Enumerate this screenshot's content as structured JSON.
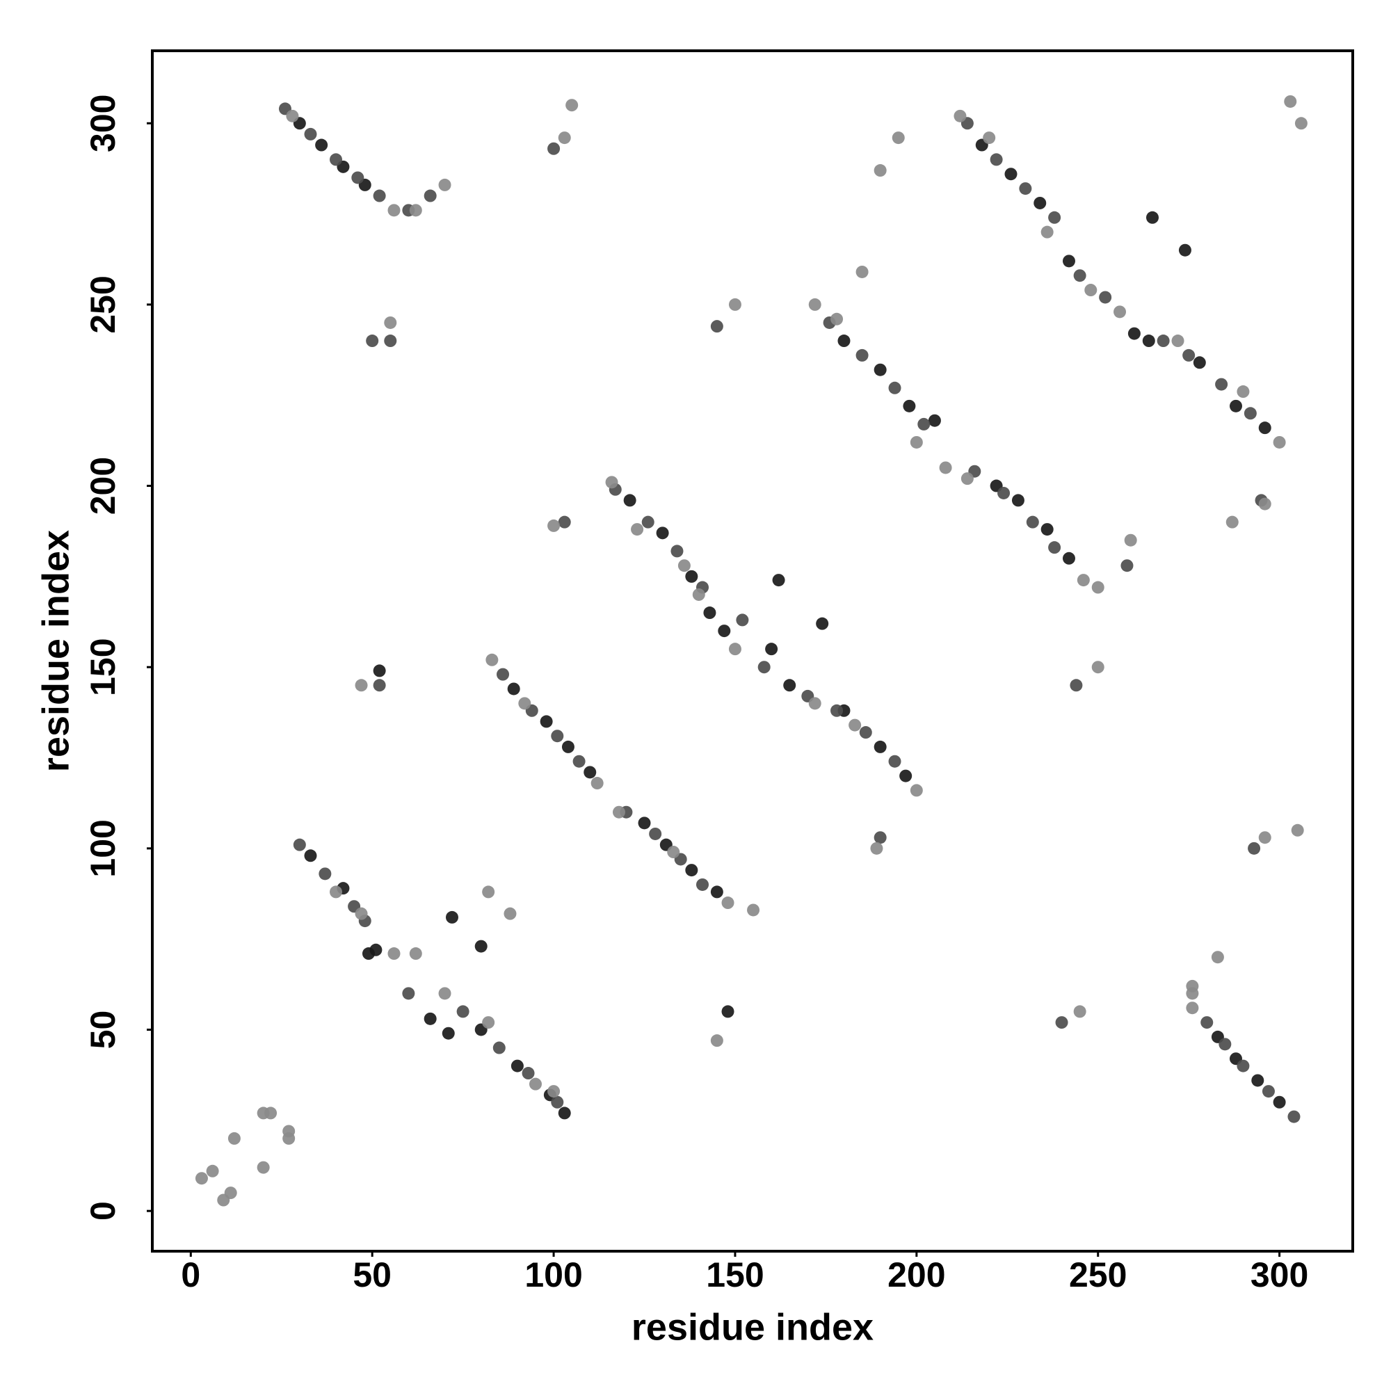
{
  "chart_data": {
    "type": "scatter",
    "xlabel": "residue index",
    "ylabel": "residue index",
    "xlim": [
      -10.6,
      320.2
    ],
    "ylim": [
      -11.1,
      320
    ],
    "xticks": [
      0,
      50,
      100,
      150,
      200,
      250,
      300
    ],
    "yticks": [
      0,
      50,
      100,
      150,
      200,
      250,
      300
    ],
    "series": [
      {
        "color": "#1a1a1a",
        "x": [
          30,
          36,
          42,
          48,
          300,
          294,
          288,
          283,
          33,
          42,
          51,
          66,
          80,
          90,
          99,
          103,
          89,
          98,
          104,
          110,
          125,
          131,
          138,
          145,
          121,
          130,
          138,
          143,
          147,
          160,
          165,
          180,
          190,
          197,
          180,
          190,
          198,
          205,
          222,
          228,
          236,
          242,
          218,
          226,
          234,
          242,
          260,
          264,
          278,
          288,
          296,
          52,
          72,
          80,
          148,
          162,
          174,
          265,
          274,
          71,
          49
        ],
        "y": [
          300,
          294,
          288,
          283,
          30,
          36,
          42,
          48,
          98,
          89,
          72,
          53,
          50,
          40,
          32,
          27,
          144,
          135,
          128,
          121,
          107,
          101,
          94,
          88,
          196,
          187,
          175,
          165,
          160,
          155,
          145,
          138,
          128,
          120,
          240,
          232,
          222,
          218,
          200,
          196,
          188,
          180,
          294,
          286,
          278,
          262,
          242,
          240,
          234,
          222,
          216,
          149,
          81,
          73,
          55,
          174,
          162,
          274,
          265,
          49,
          71
        ]
      },
      {
        "color": "#4d4d4d",
        "x": [
          26,
          33,
          40,
          46,
          52,
          60,
          66,
          304,
          297,
          290,
          285,
          280,
          30,
          37,
          45,
          48,
          60,
          75,
          85,
          93,
          101,
          86,
          94,
          101,
          107,
          120,
          128,
          135,
          141,
          117,
          126,
          134,
          141,
          152,
          158,
          170,
          178,
          186,
          194,
          176,
          185,
          194,
          202,
          216,
          224,
          232,
          238,
          258,
          214,
          222,
          230,
          238,
          245,
          252,
          268,
          275,
          284,
          292,
          50,
          145,
          244,
          52,
          100,
          293,
          240,
          55,
          190,
          103,
          295
        ],
        "y": [
          304,
          297,
          290,
          285,
          280,
          276,
          280,
          26,
          33,
          40,
          46,
          52,
          101,
          93,
          84,
          80,
          60,
          55,
          45,
          38,
          30,
          148,
          138,
          131,
          124,
          110,
          104,
          97,
          90,
          199,
          190,
          182,
          172,
          163,
          150,
          142,
          138,
          132,
          124,
          245,
          236,
          227,
          217,
          204,
          198,
          190,
          183,
          178,
          300,
          290,
          282,
          274,
          258,
          252,
          240,
          236,
          228,
          220,
          240,
          244,
          145,
          145,
          293,
          100,
          52,
          240,
          103,
          190,
          196
        ]
      },
      {
        "color": "#8a8a8a",
        "x": [
          28,
          56,
          62,
          70,
          276,
          276,
          283,
          276,
          40,
          47,
          56,
          62,
          70,
          82,
          95,
          100,
          83,
          92,
          112,
          118,
          133,
          148,
          155,
          116,
          123,
          136,
          140,
          150,
          172,
          183,
          200,
          172,
          178,
          200,
          208,
          214,
          246,
          250,
          212,
          220,
          236,
          248,
          256,
          272,
          290,
          300,
          3,
          6,
          9,
          11,
          12,
          20,
          20,
          27,
          22,
          27,
          105,
          305,
          303,
          306,
          150,
          250,
          185,
          259,
          190,
          287,
          195,
          296,
          100,
          189,
          82,
          88,
          145,
          47,
          245,
          55,
          103,
          296
        ],
        "y": [
          302,
          276,
          276,
          283,
          56,
          62,
          70,
          60,
          88,
          82,
          71,
          71,
          60,
          52,
          35,
          33,
          152,
          140,
          118,
          110,
          99,
          85,
          83,
          201,
          188,
          178,
          170,
          155,
          140,
          134,
          116,
          250,
          246,
          212,
          205,
          202,
          174,
          172,
          302,
          296,
          270,
          254,
          248,
          240,
          226,
          212,
          9,
          11,
          3,
          5,
          20,
          12,
          27,
          20,
          27,
          22,
          305,
          105,
          306,
          300,
          250,
          150,
          259,
          185,
          287,
          190,
          296,
          195,
          189,
          100,
          88,
          82,
          47,
          145,
          55,
          245,
          296,
          103
        ]
      }
    ]
  }
}
